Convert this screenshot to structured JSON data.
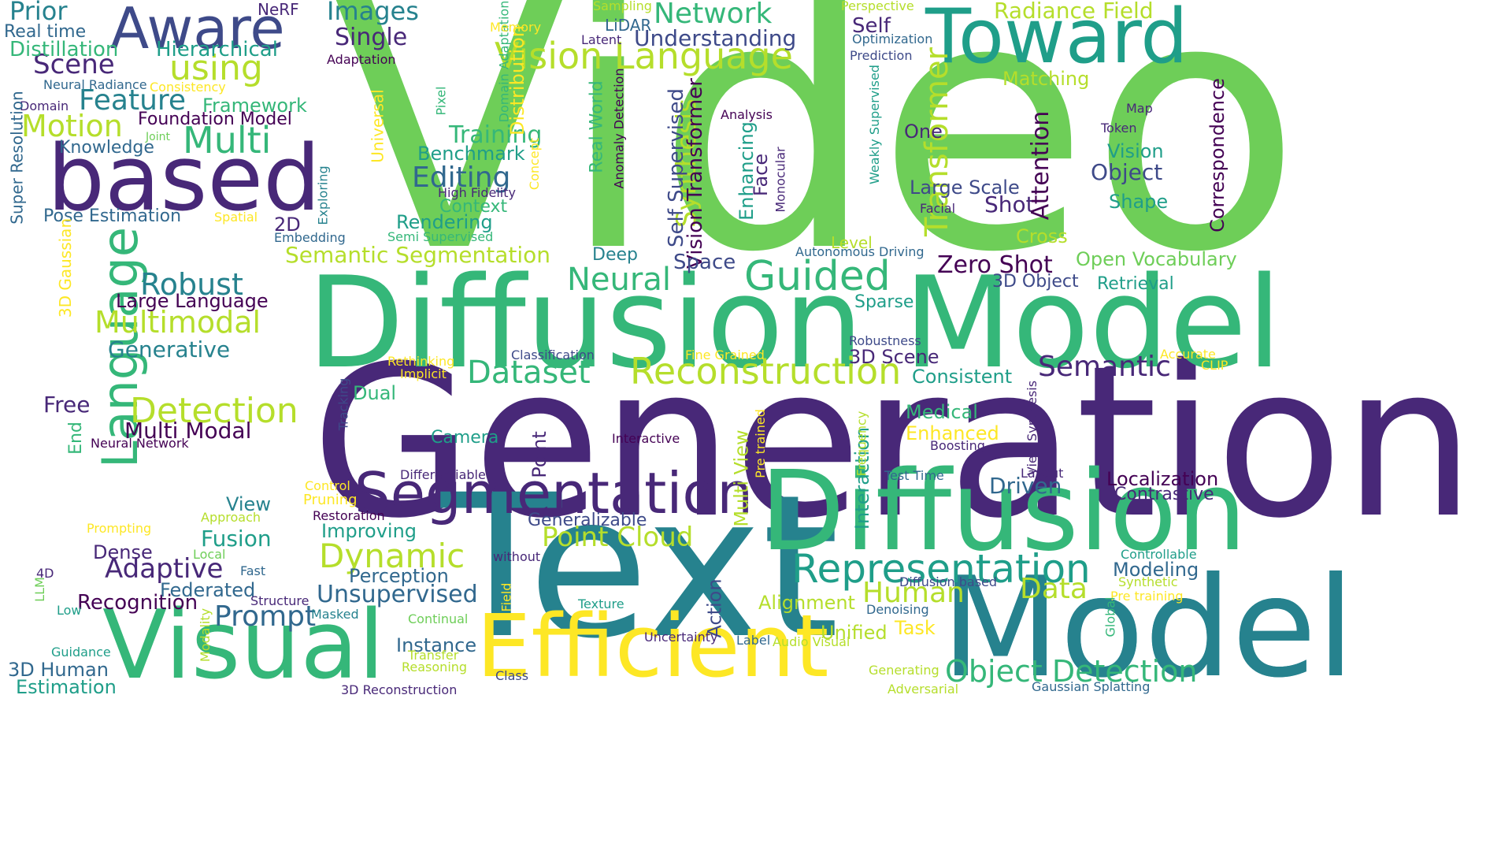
{
  "colors": {
    "c1": "#440154",
    "c2": "#482878",
    "c3": "#3e4a89",
    "c4": "#31688e",
    "c5": "#26828e",
    "c6": "#1f9e89",
    "c7": "#35b779",
    "c8": "#6ece58",
    "c9": "#b5de2b",
    "c10": "#fde725"
  },
  "words": [
    "Video",
    "Generation",
    "Diffusion Model",
    "Text",
    "Model",
    "Diffusion",
    "Toward",
    "based",
    "Aware",
    "Visual",
    "Efficient",
    "Segmentation",
    "Language",
    "Model",
    "Representation",
    "Object Detection",
    "Reconstruction",
    "Detection",
    "Vision Language",
    "Transformer",
    "Synthesis",
    "Guided",
    "Neural",
    "Dataset",
    "Semantic",
    "Multimodal",
    "Robust",
    "Multi",
    "Motion",
    "Feature",
    "Scene",
    "using",
    "Prior",
    "Images",
    "Network",
    "Radiance Field",
    "Point Cloud",
    "Dynamic",
    "Adaptive",
    "Prompt",
    "Recognition",
    "Unsupervised",
    "Human",
    "Data",
    "Editing",
    "Training",
    "Generative",
    "Large Language",
    "Multi Modal",
    "Free",
    "Single",
    "Real time",
    "Distillation",
    "Hierarchical",
    "NeRF",
    "Neural Radiance",
    "Consistency",
    "Domain",
    "Framework",
    "Foundation Model",
    "Knowledge",
    "Joint",
    "Super Resolution",
    "Pose Estimation",
    "2D",
    "Spatial",
    "Embedding",
    "3D Gaussian",
    "Semantic Segmentation",
    "Semi Supervised",
    "Rendering",
    "Context",
    "Benchmark",
    "Universal",
    "Exploring",
    "High Fidelity",
    "Concept",
    "Pixel",
    "Domain Adaptation",
    "Distribution",
    "Memory",
    "Adaptation",
    "Sampling",
    "LiDAR",
    "Latent",
    "Real World",
    "Anomaly Detection",
    "Self Supervised",
    "Vision Transformer",
    "Deep",
    "Space",
    "Understanding",
    "Perspective",
    "Self",
    "Optimization",
    "Prediction",
    "Weakly Supervised",
    "Matching",
    "Correspondence",
    "Map",
    "Token",
    "Vision",
    "Object",
    "Shape",
    "Large Scale",
    "Facial",
    "Shot",
    "Attention",
    "One",
    "Analysis",
    "Enhancing",
    "Face",
    "Monocular",
    "Cross",
    "Level",
    "Autonomous Driving",
    "Open Vocabulary",
    "Zero Shot",
    "3D Object",
    "Retrieval",
    "Sparse",
    "Robustness",
    "3D Scene",
    "Accurate",
    "CLIP",
    "Consistent",
    "Classification",
    "Fine Grained",
    "Rethinking",
    "Implicit",
    "Tracking",
    "Dual",
    "End",
    "Neural Network",
    "Camera",
    "Interactive",
    "Point",
    "Differentiable",
    "Multi View",
    "Pre trained",
    "Interaction",
    "Frequency",
    "Medical",
    "Enhanced",
    "Boosting",
    "View Synthesis",
    "Test Time",
    "Layout",
    "Driven",
    "Localization",
    "Contrastive",
    "Control",
    "Pruning",
    "View",
    "Approach",
    "Restoration",
    "Prompting",
    "Improving",
    "Generalizable",
    "Fusion",
    "Local",
    "Dense",
    "Perception",
    "without",
    "Fast",
    "4D",
    "LLM",
    "Federated",
    "Low",
    "Structure",
    "Masked",
    "Field",
    "Action",
    "Alignment",
    "Continual",
    "Texture",
    "Diffusion based",
    "Denoising",
    "Synthetic",
    "Pre training",
    "Controllable",
    "Modeling",
    "Global",
    "Uncertainty",
    "Label",
    "Audio Visual",
    "Unified",
    "Task",
    "Instance",
    "Transfer",
    "Reasoning",
    "Guidance",
    "Modality",
    "3D Human",
    "Estimation",
    "3D Reconstruction",
    "Class",
    "Generating",
    "Adversarial",
    "Gaussian Splatting"
  ]
}
